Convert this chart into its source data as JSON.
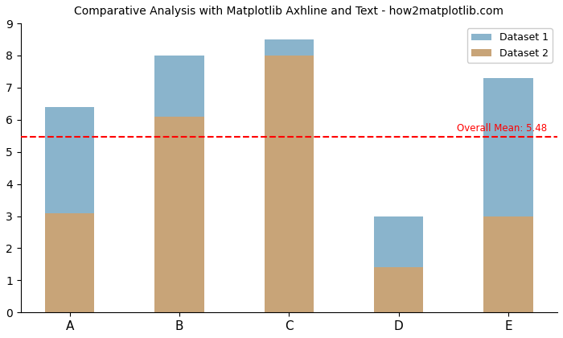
{
  "categories": [
    "A",
    "B",
    "C",
    "D",
    "E"
  ],
  "dataset2": [
    3.1,
    6.1,
    8.0,
    1.4,
    3.0
  ],
  "dataset1_total": [
    6.4,
    8.0,
    8.5,
    3.0,
    7.3
  ],
  "overall_mean": 5.48,
  "mean_label": "Overall Mean: 5.48",
  "title": "Comparative Analysis with Matplotlib Axhline and Text - how2matplotlib.com",
  "color_dataset1": "#8ab4cc",
  "color_dataset2": "#c8a478",
  "color_dataset2_light": "#f5c899",
  "color_line": "red",
  "legend_labels": [
    "Dataset 1",
    "Dataset 2"
  ],
  "ylim": [
    0,
    9.0
  ],
  "bar_width": 0.45,
  "background_color": "#ffffff",
  "title_fontsize": 10
}
